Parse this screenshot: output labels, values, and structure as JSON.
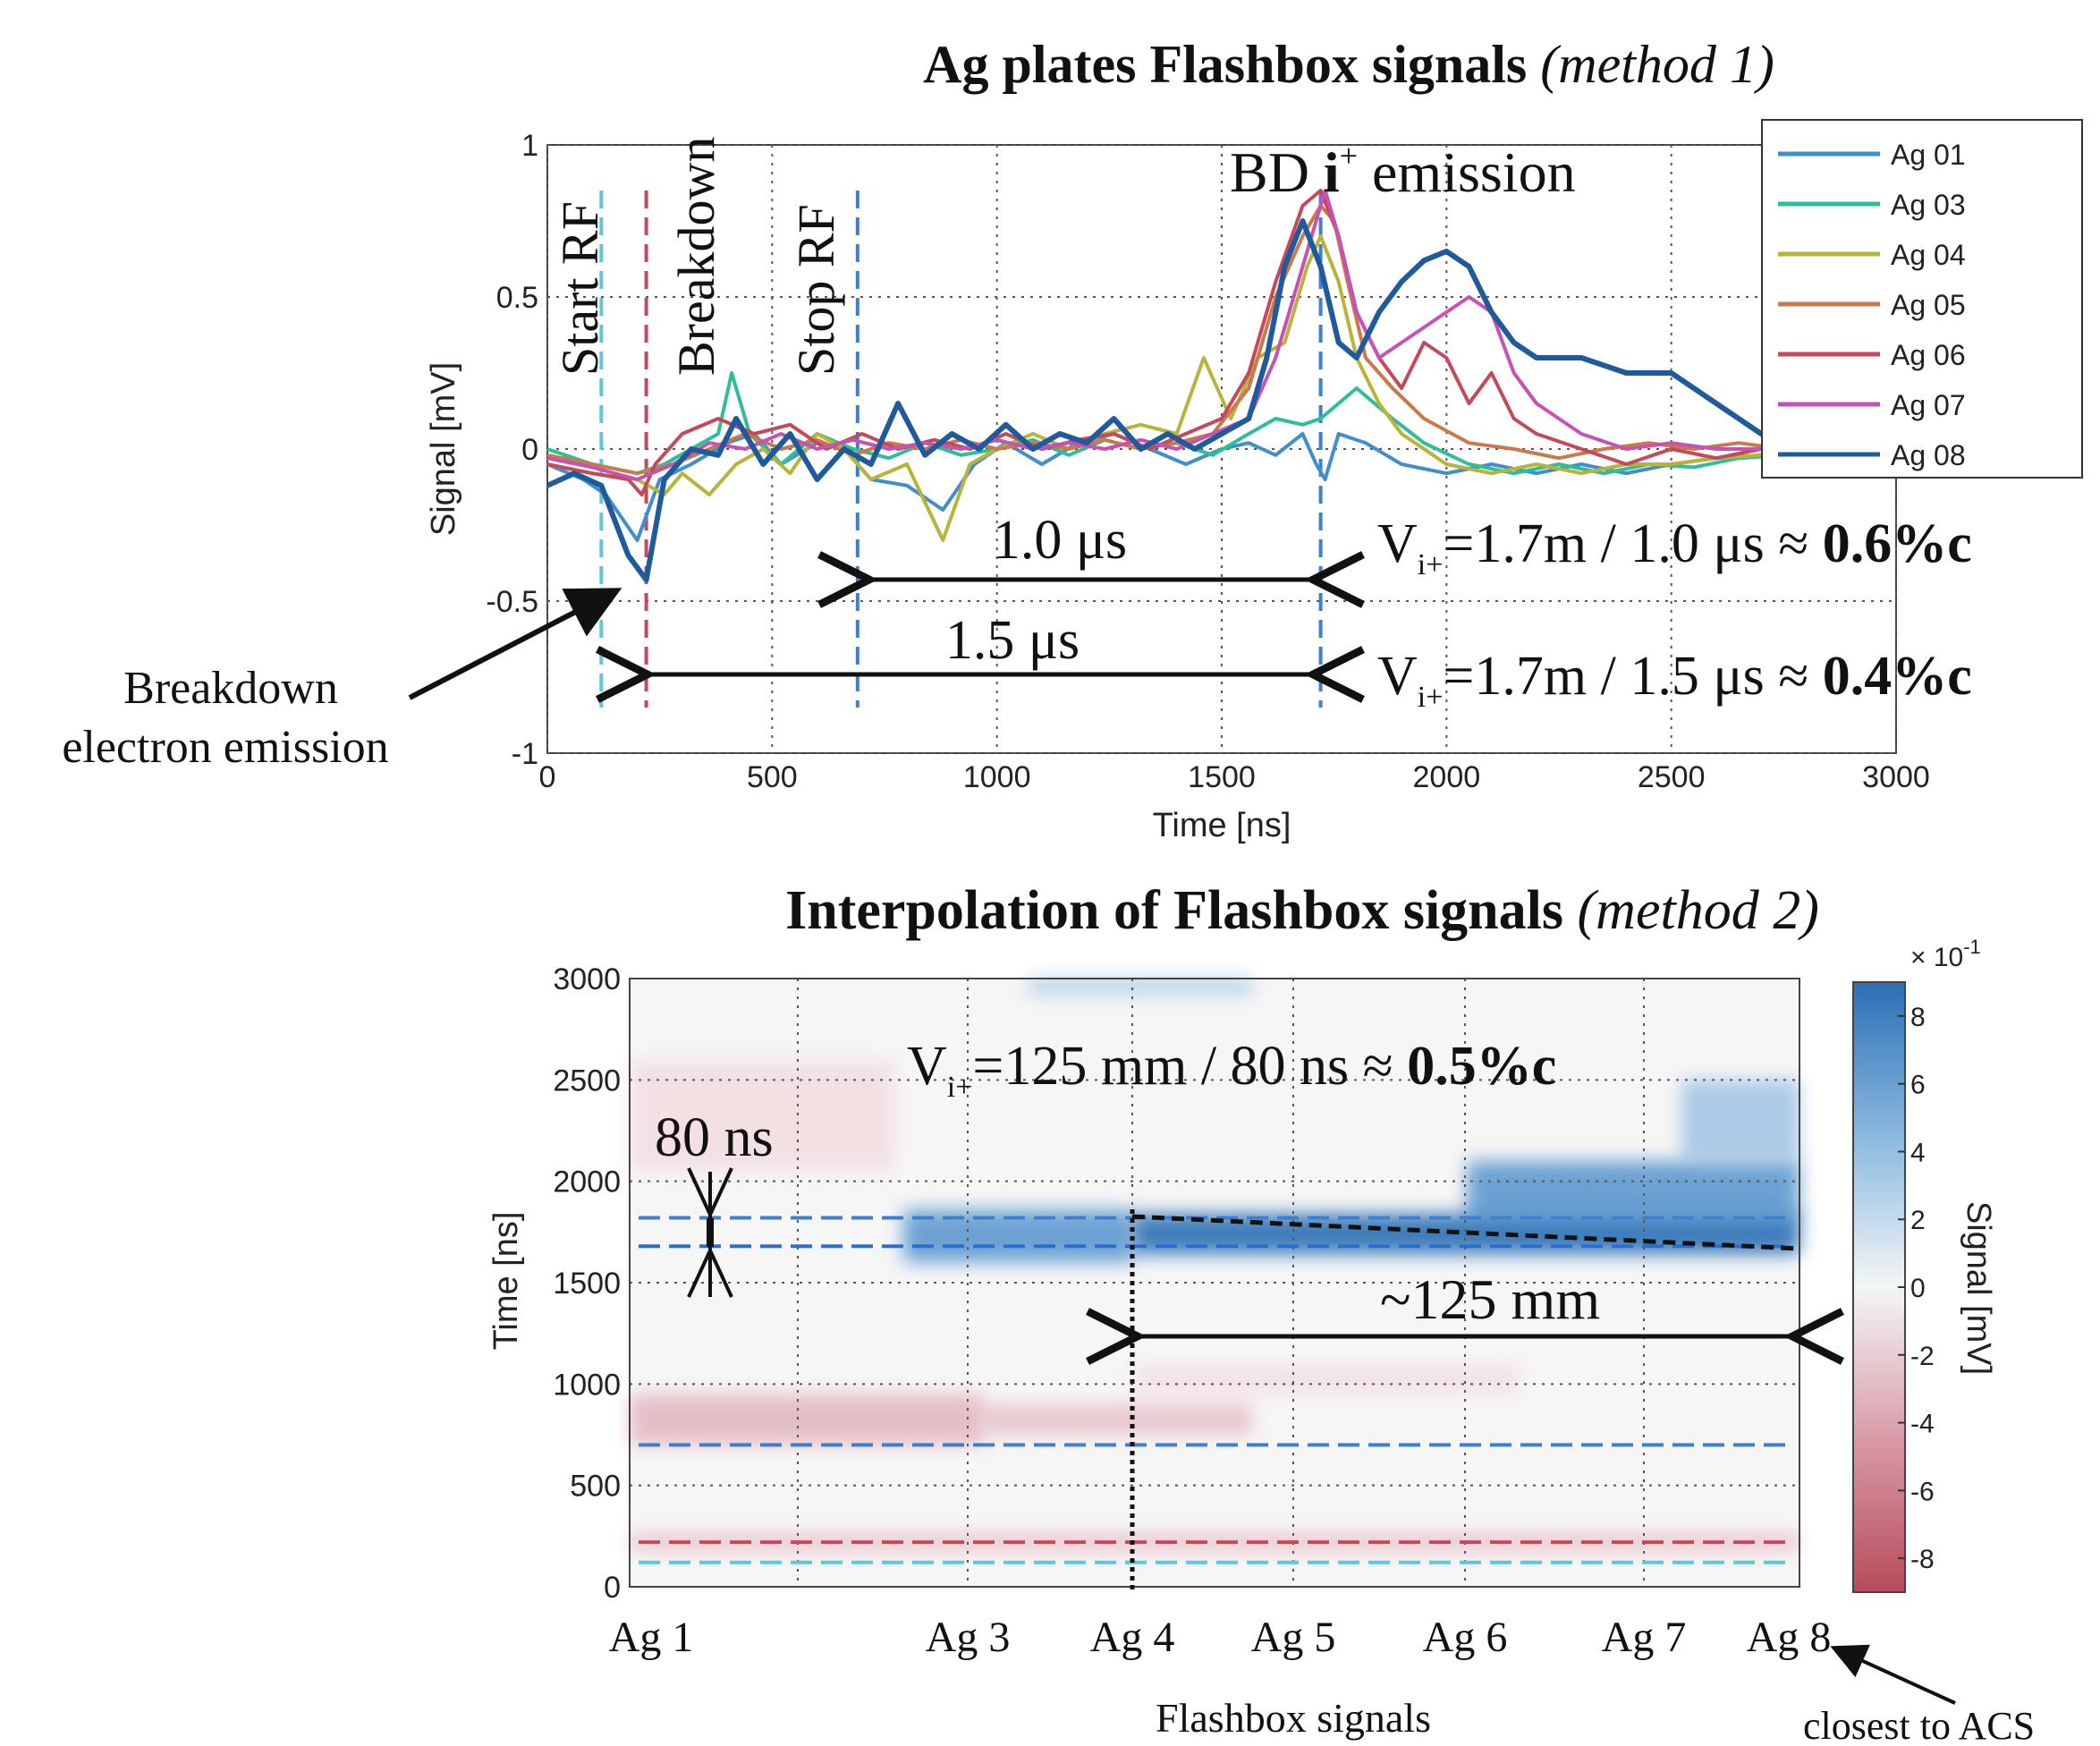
{
  "chart_data": [
    {
      "type": "line",
      "title": "Ag plates Flashbox signals",
      "title_suffix": "(method 1)",
      "xlabel": "Time [ns]",
      "ylabel": "Signal [mV]",
      "xlim": [
        0,
        3000
      ],
      "ylim": [
        -1,
        1
      ],
      "xticks": [
        0,
        500,
        1000,
        1500,
        2000,
        2500,
        3000
      ],
      "xtick_labels": [
        "0",
        "500",
        "1000",
        "1500",
        "2000",
        "2500",
        "3000"
      ],
      "yticks": [
        -1,
        -0.5,
        0,
        0.5,
        1
      ],
      "ytick_labels": [
        "-1",
        "-0.5",
        "0",
        "0.5",
        "1"
      ],
      "grid": true,
      "legend_position": "top-right",
      "series": [
        {
          "name": "Ag 01",
          "color": "#3f8fd0",
          "x": [
            0,
            80,
            130,
            200,
            250,
            320,
            400,
            460,
            520,
            600,
            660,
            720,
            800,
            880,
            950,
            1020,
            1100,
            1180,
            1260,
            1340,
            1420,
            1500,
            1560,
            1620,
            1680,
            1710,
            1730,
            1760,
            1820,
            1900,
            2000,
            2100,
            2200,
            2300,
            2400,
            2500,
            2600,
            2700,
            2800
          ],
          "y": [
            -0.05,
            -0.1,
            -0.15,
            -0.3,
            -0.1,
            -0.05,
            0.02,
            0.05,
            -0.05,
            0.02,
            0.0,
            -0.1,
            -0.12,
            -0.2,
            -0.05,
            0.02,
            -0.05,
            0.02,
            0.05,
            0.0,
            -0.05,
            0.0,
            0.02,
            -0.02,
            0.05,
            -0.05,
            -0.1,
            0.05,
            0.02,
            -0.05,
            -0.08,
            -0.05,
            -0.08,
            -0.05,
            -0.08,
            -0.05,
            -0.03,
            -0.02,
            0.0
          ]
        },
        {
          "name": "Ag 03",
          "color": "#2ebf9a",
          "x": [
            0,
            100,
            200,
            260,
            320,
            380,
            410,
            450,
            520,
            600,
            680,
            760,
            840,
            920,
            1000,
            1080,
            1160,
            1240,
            1320,
            1400,
            1480,
            1560,
            1620,
            1680,
            1720,
            1760,
            1800,
            1880,
            1950,
            2050,
            2150,
            2250,
            2350,
            2450,
            2550,
            2650,
            2750,
            2800
          ],
          "y": [
            0.0,
            -0.05,
            -0.08,
            -0.05,
            0.0,
            0.05,
            0.25,
            0.05,
            -0.05,
            0.05,
            0.0,
            -0.03,
            0.02,
            -0.02,
            0.0,
            0.03,
            -0.02,
            0.03,
            0.0,
            0.02,
            -0.02,
            0.05,
            0.1,
            0.08,
            0.1,
            0.15,
            0.2,
            0.1,
            0.02,
            -0.05,
            -0.08,
            -0.05,
            -0.08,
            -0.05,
            -0.06,
            -0.03,
            -0.02,
            0.0
          ]
        },
        {
          "name": "Ag 04",
          "color": "#b8b43a",
          "x": [
            0,
            100,
            200,
            260,
            300,
            360,
            420,
            480,
            540,
            600,
            660,
            720,
            800,
            880,
            940,
            1000,
            1080,
            1160,
            1240,
            1320,
            1400,
            1460,
            1520,
            1580,
            1640,
            1690,
            1720,
            1760,
            1800,
            1850,
            1900,
            2000,
            2100,
            2200,
            2300,
            2400,
            2500,
            2600,
            2700,
            2800
          ],
          "y": [
            -0.05,
            -0.08,
            -0.1,
            -0.15,
            -0.08,
            -0.15,
            -0.05,
            0.0,
            -0.08,
            0.05,
            0.0,
            -0.1,
            -0.05,
            -0.3,
            -0.05,
            0.0,
            0.05,
            0.0,
            0.05,
            0.08,
            0.05,
            0.3,
            0.1,
            0.3,
            0.35,
            0.6,
            0.7,
            0.55,
            0.3,
            0.15,
            0.05,
            -0.05,
            -0.08,
            -0.05,
            -0.08,
            -0.05,
            -0.05,
            -0.03,
            -0.02,
            0.0
          ]
        },
        {
          "name": "Ag 05",
          "color": "#c97a4a",
          "x": [
            0,
            100,
            200,
            280,
            360,
            440,
            520,
            600,
            680,
            760,
            840,
            920,
            1000,
            1080,
            1160,
            1240,
            1320,
            1400,
            1480,
            1560,
            1620,
            1680,
            1720,
            1750,
            1780,
            1820,
            1880,
            1950,
            2050,
            2150,
            2250,
            2350,
            2450,
            2550,
            2650,
            2750,
            2800
          ],
          "y": [
            -0.02,
            -0.05,
            -0.08,
            -0.05,
            0.0,
            0.05,
            0.0,
            0.03,
            -0.02,
            0.02,
            0.0,
            0.03,
            0.0,
            0.02,
            0.0,
            0.03,
            0.0,
            0.02,
            0.05,
            0.2,
            0.5,
            0.7,
            0.8,
            0.75,
            0.55,
            0.3,
            0.2,
            0.1,
            0.02,
            0.0,
            -0.03,
            0.0,
            0.02,
            0.0,
            0.02,
            0.0,
            0.0
          ]
        },
        {
          "name": "Ag 06",
          "color": "#c44a5a",
          "x": [
            0,
            100,
            180,
            210,
            240,
            300,
            380,
            460,
            540,
            620,
            700,
            780,
            860,
            940,
            1020,
            1100,
            1180,
            1260,
            1340,
            1420,
            1500,
            1560,
            1620,
            1680,
            1720,
            1760,
            1800,
            1850,
            1900,
            1950,
            2000,
            2050,
            2100,
            2150,
            2200,
            2300,
            2400,
            2500,
            2600,
            2700,
            2800
          ],
          "y": [
            -0.05,
            -0.08,
            -0.1,
            -0.15,
            -0.05,
            0.05,
            0.1,
            0.05,
            0.08,
            0.0,
            0.05,
            0.0,
            0.03,
            0.0,
            0.05,
            0.0,
            0.03,
            0.05,
            0.0,
            0.05,
            0.1,
            0.25,
            0.55,
            0.8,
            0.85,
            0.7,
            0.45,
            0.3,
            0.2,
            0.35,
            0.3,
            0.15,
            0.25,
            0.1,
            0.05,
            0.0,
            -0.05,
            0.0,
            -0.03,
            0.0,
            0.0
          ]
        },
        {
          "name": "Ag 07",
          "color": "#c652b4",
          "x": [
            0,
            100,
            200,
            280,
            360,
            440,
            520,
            600,
            680,
            760,
            840,
            920,
            1000,
            1080,
            1160,
            1240,
            1320,
            1400,
            1480,
            1560,
            1620,
            1680,
            1730,
            1760,
            1800,
            1850,
            1900,
            1950,
            2000,
            2050,
            2100,
            2150,
            2200,
            2300,
            2400,
            2500,
            2600,
            2700,
            2800
          ],
          "y": [
            -0.03,
            -0.06,
            -0.1,
            -0.05,
            0.02,
            0.0,
            0.05,
            0.0,
            0.03,
            0.0,
            0.02,
            0.0,
            0.03,
            0.0,
            0.02,
            0.0,
            0.03,
            0.0,
            0.05,
            0.1,
            0.3,
            0.6,
            0.85,
            0.7,
            0.45,
            0.3,
            0.35,
            0.4,
            0.45,
            0.5,
            0.45,
            0.25,
            0.15,
            0.05,
            0.0,
            0.02,
            0.0,
            0.0,
            0.0
          ]
        },
        {
          "name": "Ag 08",
          "color": "#1f5b9c",
          "x": [
            0,
            60,
            120,
            180,
            220,
            260,
            320,
            380,
            420,
            480,
            540,
            600,
            660,
            720,
            780,
            840,
            900,
            960,
            1020,
            1080,
            1140,
            1200,
            1260,
            1320,
            1380,
            1440,
            1500,
            1560,
            1600,
            1640,
            1680,
            1720,
            1760,
            1800,
            1850,
            1900,
            1950,
            2000,
            2050,
            2100,
            2150,
            2200,
            2300,
            2400,
            2500,
            2600,
            2700,
            2800
          ],
          "y": [
            -0.12,
            -0.08,
            -0.12,
            -0.35,
            -0.43,
            -0.1,
            0.0,
            -0.02,
            0.1,
            -0.05,
            0.05,
            -0.1,
            0.0,
            -0.05,
            0.15,
            -0.02,
            0.05,
            0.0,
            0.08,
            0.0,
            0.05,
            0.02,
            0.1,
            0.0,
            0.05,
            0.0,
            0.05,
            0.1,
            0.3,
            0.6,
            0.75,
            0.6,
            0.35,
            0.3,
            0.45,
            0.55,
            0.62,
            0.65,
            0.6,
            0.45,
            0.35,
            0.3,
            0.3,
            0.25,
            0.25,
            0.15,
            0.05,
            0.0
          ]
        }
      ],
      "vlines": [
        {
          "label": "Start RF",
          "x": 120,
          "color": "#5cc8e0"
        },
        {
          "label": "Breakdown",
          "x": 220,
          "color": "#c44a5a"
        },
        {
          "label": "Stop RF",
          "x": 690,
          "color": "#3f7fd0"
        },
        {
          "label": "",
          "x": 1720,
          "color": "#3f7fd0"
        }
      ],
      "annotations": {
        "bd_emission": "BD",
        "bd_emission_i": "i",
        "bd_emission_sup": "+",
        "bd_emission_rest": "emission",
        "arrow1_label": "1.0 μs",
        "arrow2_label": "1.5 μs",
        "eq1_v": "V",
        "eq1_sub": "i+",
        "eq1_text": "=1.7m / 1.0 μs ≈ ",
        "eq1_bold": "0.6%c",
        "eq2_v": "V",
        "eq2_sub": "i+",
        "eq2_text": "=1.7m / 1.5 μs ≈ ",
        "eq2_bold": "0.4%c",
        "breakdown_note_line1": "Breakdown",
        "breakdown_note_line2": "electron emission"
      }
    },
    {
      "type": "heatmap",
      "title": "Interpolation of Flashbox signals",
      "title_suffix": "(method 2)",
      "xlabel": "Flashbox signals",
      "ylabel": "Time [ns]",
      "categories": [
        "Ag 1",
        "Ag 3",
        "Ag 4",
        "Ag 5",
        "Ag 6",
        "Ag 7",
        "Ag 8"
      ],
      "ylim": [
        0,
        3000
      ],
      "yticks": [
        0,
        500,
        1000,
        1500,
        2000,
        2500,
        3000
      ],
      "ytick_labels": [
        "0",
        "500",
        "1000",
        "1500",
        "2000",
        "2500",
        "3000"
      ],
      "grid": true,
      "colorbar": {
        "label": "Signal [mV]",
        "multiplier": "× 10",
        "multiplier_exp": "-1",
        "range": [
          -9,
          9
        ],
        "ticks": [
          8,
          6,
          4,
          2,
          0,
          -2,
          -4,
          -6,
          -8
        ],
        "tick_labels": [
          "8",
          "6",
          "4",
          "2",
          "0",
          "-2",
          "-4",
          "-6",
          "-8"
        ],
        "colors": {
          "high": "#2a6fb4",
          "mid": "#f4f6f7",
          "low": "#b84a5c"
        }
      },
      "hlines_ns": [
        {
          "y": 1820,
          "color": "#3f7fd0"
        },
        {
          "y": 1680,
          "color": "#2a6fd0"
        },
        {
          "y": 700,
          "color": "#3f7fd0"
        },
        {
          "y": 220,
          "color": "#c44a5a"
        },
        {
          "y": 120,
          "color": "#5cc8e0"
        }
      ],
      "annotations": {
        "eq_v": "V",
        "eq_sub": "i+",
        "eq_text": "=125 mm / 80 ns ≈ ",
        "eq_bold": "0.5%c",
        "delta_label": "80 ns",
        "distance_label": "~125 mm",
        "closest_note": "closest to ACS"
      }
    }
  ]
}
